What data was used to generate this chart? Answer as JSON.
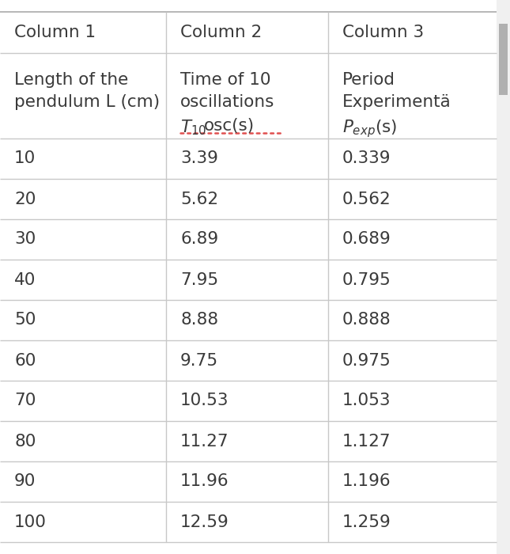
{
  "col1_header": "Column 1",
  "col2_header": "Column 2",
  "col3_header": "Column 3",
  "lengths": [
    10,
    20,
    30,
    40,
    50,
    60,
    70,
    80,
    90,
    100
  ],
  "t10osc": [
    "3.39",
    "5.62",
    "6.89",
    "7.95",
    "8.88",
    "9.75",
    "10.53",
    "11.27",
    "11.96",
    "12.59"
  ],
  "pexp": [
    "0.339",
    "0.562",
    "0.689",
    "0.795",
    "0.888",
    "0.975",
    "1.053",
    "1.127",
    "1.196",
    "1.259"
  ],
  "bg_color": "#ffffff",
  "text_color": "#3a3a3a",
  "line_color": "#c8c8c8",
  "scrollbar_color": "#b0b0b0",
  "red_dotted_color": "#e05050",
  "font_size": 15.5,
  "fig_width": 6.45,
  "fig_height": 7.0
}
